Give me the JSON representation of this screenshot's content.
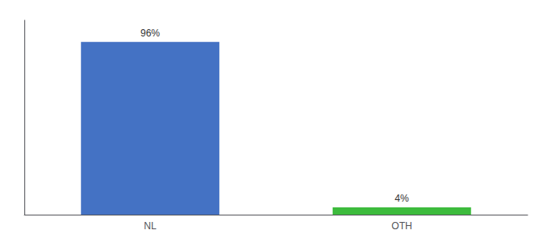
{
  "chart_data": {
    "type": "bar",
    "categories": [
      "NL",
      "OTH"
    ],
    "values": [
      96,
      4
    ],
    "value_labels": [
      "96%",
      "4%"
    ],
    "colors": [
      "#4472c4",
      "#3dbb3d"
    ],
    "ylim": [
      0,
      108
    ],
    "grid": false,
    "data_labels": true,
    "tick_labels": "x"
  }
}
